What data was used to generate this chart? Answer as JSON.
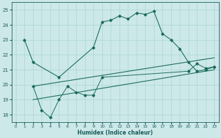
{
  "xlabel": "Humidex (Indice chaleur)",
  "bg_color": "#cce8e8",
  "grid_color": "#aad4d4",
  "line_color": "#1a6b5a",
  "xlim": [
    -0.5,
    23.5
  ],
  "ylim": [
    17.5,
    25.5
  ],
  "yticks": [
    18,
    19,
    20,
    21,
    22,
    23,
    24,
    25
  ],
  "xticks": [
    0,
    1,
    2,
    3,
    4,
    5,
    6,
    7,
    8,
    9,
    10,
    11,
    12,
    13,
    14,
    15,
    16,
    17,
    18,
    19,
    20,
    21,
    22,
    23
  ],
  "series1_x": [
    1,
    2,
    5,
    9,
    10,
    11,
    12,
    13,
    14,
    15,
    16,
    17,
    18,
    19,
    20,
    21,
    22,
    23
  ],
  "series1_y": [
    23.0,
    21.5,
    20.5,
    22.5,
    24.2,
    24.3,
    24.6,
    24.4,
    24.8,
    24.7,
    24.9,
    23.4,
    23.0,
    22.4,
    21.5,
    20.9,
    21.0,
    21.2
  ],
  "series2_x": [
    2,
    3,
    4,
    5,
    6,
    7,
    8,
    9,
    10,
    20,
    21,
    22,
    23
  ],
  "series2_y": [
    19.9,
    18.3,
    17.8,
    19.0,
    19.9,
    19.5,
    19.3,
    19.3,
    20.5,
    20.9,
    21.4,
    21.1,
    21.2
  ],
  "line1_x": [
    2,
    23
  ],
  "line1_y": [
    19.9,
    21.8
  ],
  "line2_x": [
    2,
    23
  ],
  "line2_y": [
    19.0,
    21.0
  ]
}
